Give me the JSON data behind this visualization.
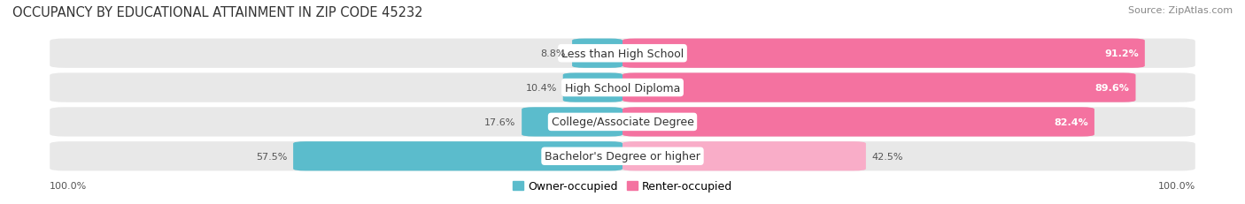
{
  "title": "OCCUPANCY BY EDUCATIONAL ATTAINMENT IN ZIP CODE 45232",
  "source": "Source: ZipAtlas.com",
  "categories": [
    "Less than High School",
    "High School Diploma",
    "College/Associate Degree",
    "Bachelor's Degree or higher"
  ],
  "owner_pct": [
    8.8,
    10.4,
    17.6,
    57.5
  ],
  "renter_pct": [
    91.2,
    89.6,
    82.4,
    42.5
  ],
  "owner_color": "#5bbccc",
  "renter_color_top3": "#f472a0",
  "renter_color_bottom": "#f9adc8",
  "bar_bg_color": "#e8e8e8",
  "title_fontsize": 10.5,
  "source_fontsize": 8,
  "label_fontsize": 9,
  "value_fontsize": 8,
  "legend_fontsize": 9,
  "axis_label_fontsize": 8,
  "figsize": [
    14.06,
    2.32
  ],
  "dpi": 100
}
